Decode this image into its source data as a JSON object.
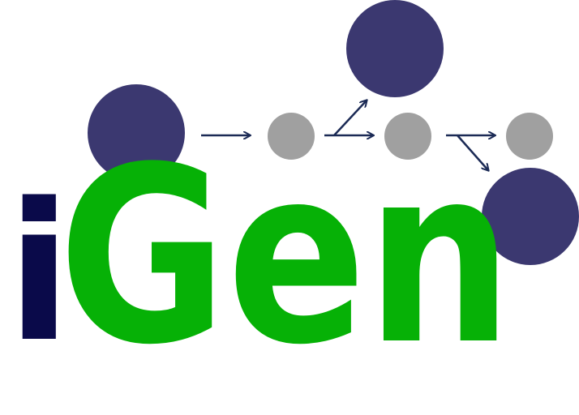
{
  "logo": {
    "prefix": "i",
    "word": "Gen",
    "colors": {
      "prefix": "#0a0a4a",
      "word": "#06b106",
      "large_node": "#3b3870",
      "small_node": "#a0a0a0",
      "arrow": "#1b2a55"
    }
  }
}
